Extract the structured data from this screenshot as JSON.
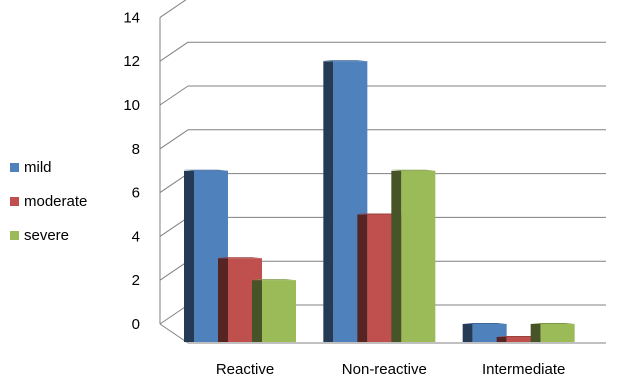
{
  "chart_data": {
    "type": "bar",
    "categories": [
      "Reactive",
      "Non-reactive",
      "Intermediate"
    ],
    "series": [
      {
        "name": "mild",
        "values": [
          7,
          12,
          0
        ]
      },
      {
        "name": "moderate",
        "values": [
          3,
          5,
          -0.4
        ]
      },
      {
        "name": "severe",
        "values": [
          2,
          7,
          0
        ]
      }
    ],
    "ylim": [
      0,
      14
    ],
    "yticks": [
      "0",
      "2",
      "4",
      "6",
      "8",
      "10",
      "12",
      "14"
    ],
    "grid": true,
    "legend_position": "left",
    "colors": [
      "#4F81BD",
      "#C0504D",
      "#9BBB59"
    ],
    "three_d": true
  }
}
